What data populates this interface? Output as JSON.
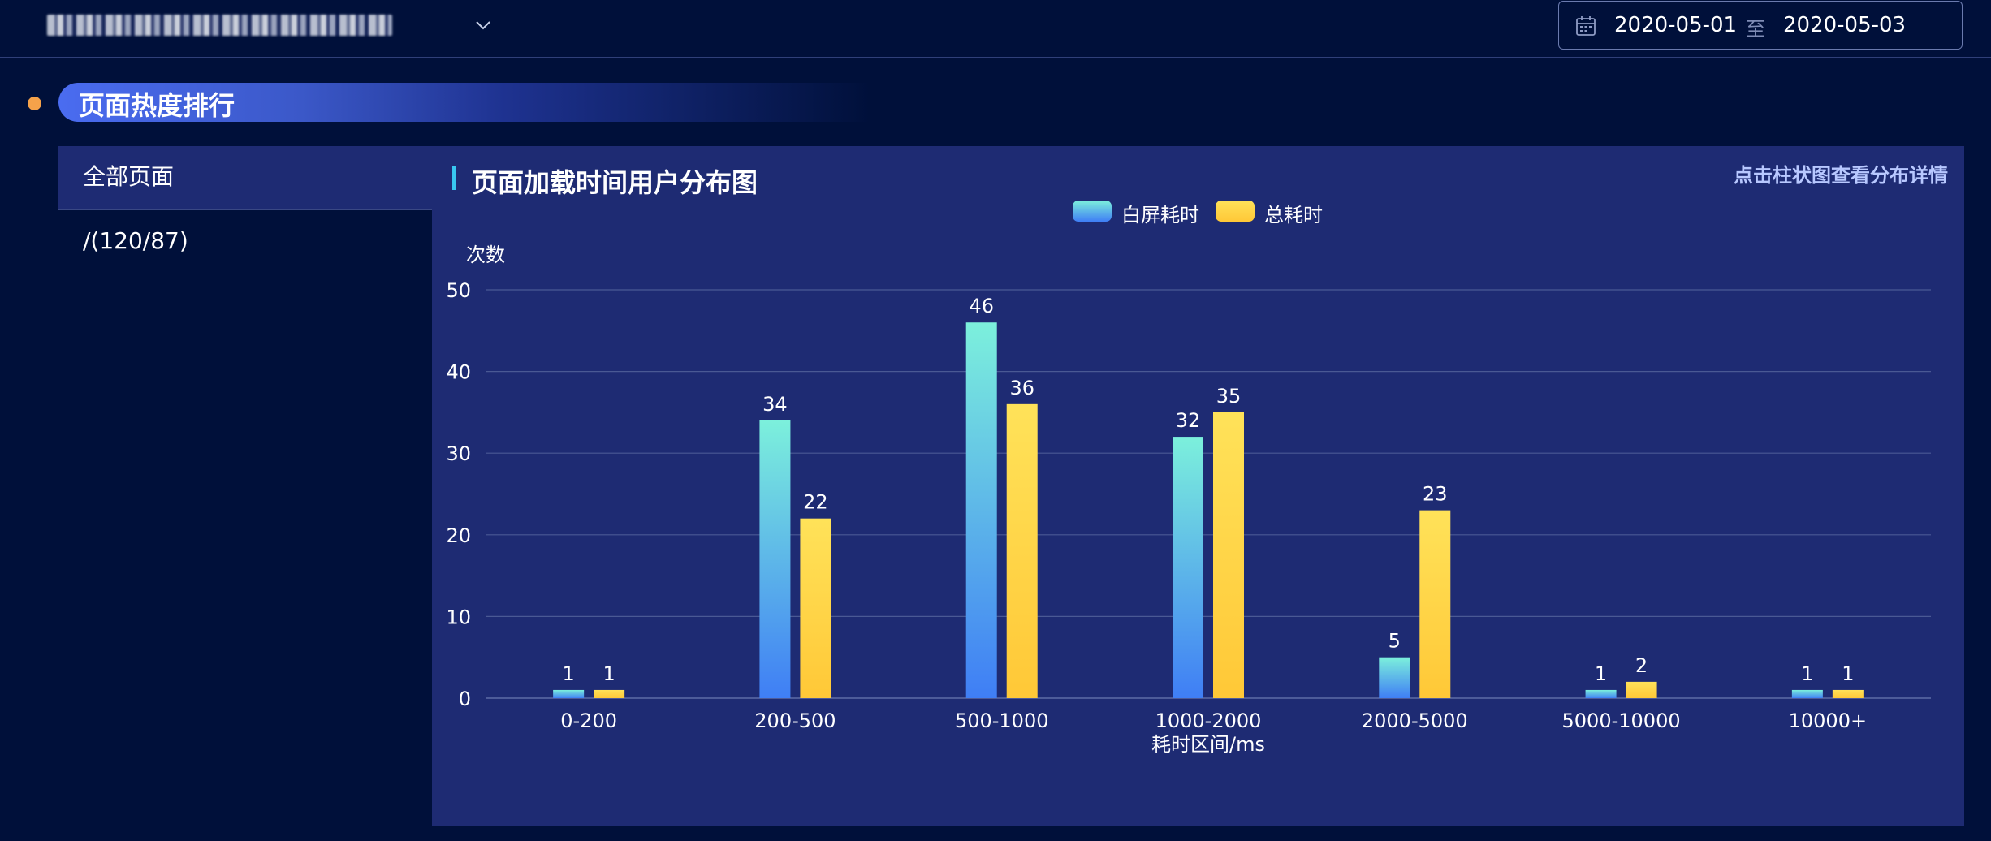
{
  "header": {
    "url_selector_value": "",
    "date_range": {
      "start": "2020-05-01",
      "separator": "至",
      "end": "2020-05-03"
    }
  },
  "section": {
    "title": "页面热度排行"
  },
  "sidebar": {
    "items": [
      {
        "label": "全部页面",
        "active": true
      },
      {
        "label": "/(120/87)",
        "active": false
      }
    ]
  },
  "panel": {
    "title": "页面加载时间用户分布图",
    "hint": "点击柱状图查看分布详情"
  },
  "colors": {
    "background": "#00103a",
    "panel": "#1e2b73",
    "accent_dot": "#f5a24a",
    "white_screen_top": "#7cf0dc",
    "white_screen_bottom": "#3f7ef5",
    "total_top": "#ffe259",
    "total_bottom": "#ffc837"
  },
  "chart_data": {
    "type": "bar",
    "title": "页面加载时间用户分布图",
    "ylabel": "次数",
    "xlabel": "耗时区间/ms",
    "categories": [
      "0-200",
      "200-500",
      "500-1000",
      "1000-2000",
      "2000-5000",
      "5000-10000",
      "10000+"
    ],
    "series": [
      {
        "name": "白屏耗时",
        "values": [
          1,
          34,
          46,
          32,
          5,
          1,
          1
        ]
      },
      {
        "name": "总耗时",
        "values": [
          1,
          22,
          36,
          35,
          23,
          2,
          1
        ]
      }
    ],
    "ylim": [
      0,
      50
    ],
    "yticks": [
      0,
      10,
      20,
      30,
      40,
      50
    ],
    "grid": true,
    "legend_position": "top-center"
  }
}
